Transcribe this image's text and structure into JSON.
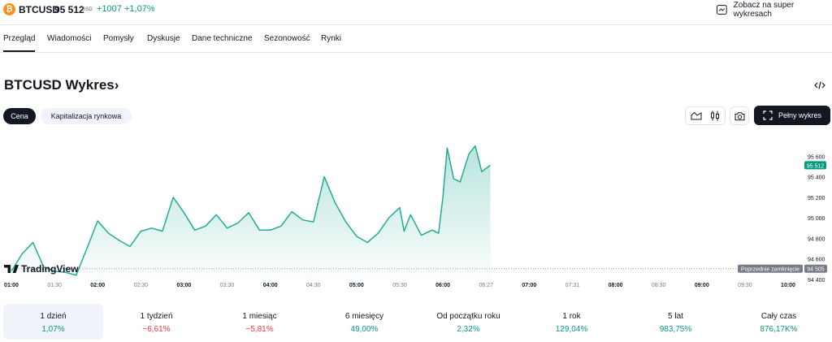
{
  "header": {
    "coin_icon": "bitcoin-icon",
    "coin_glyph": "₿",
    "symbol": "BTCUSD",
    "price": "95 512",
    "price_unit": "USD",
    "change_abs": "+1007",
    "change_pct": "+1,07%",
    "super_charts_label": "Zobacz na super wykresach",
    "super_charts_icon": "chart-square-icon"
  },
  "tabs": [
    {
      "label": "Przegląd",
      "active": true
    },
    {
      "label": "Wiadomości"
    },
    {
      "label": "Pomysły"
    },
    {
      "label": "Dyskusje"
    },
    {
      "label": "Dane techniczne"
    },
    {
      "label": "Sezonowość"
    },
    {
      "label": "Rynki"
    }
  ],
  "chart_header": {
    "title": "BTCUSD Wykres",
    "title_arrow": "›",
    "embed_icon": "code-embed-icon"
  },
  "filters": {
    "price": "Cena",
    "market_cap": "Kapitalizacja rynkowa"
  },
  "toolbar": {
    "area_icon": "area-chart-icon",
    "candle_icon": "candlestick-icon",
    "camera_icon": "camera-icon",
    "fullscreen_icon": "fullscreen-icon",
    "full_chart_label": "Pełny wykres"
  },
  "colors": {
    "accent": "#089981",
    "negative": "#f23645",
    "line": "#22ab94",
    "dark": "#131722",
    "bitcoin": "#f7931a"
  },
  "chart_data": {
    "type": "area",
    "watermark": "TradingView",
    "watermark_icon": "tradingview-logo",
    "x_ticks": [
      "01:00",
      "01:30",
      "02:00",
      "02:30",
      "03:00",
      "03:30",
      "04:00",
      "04:30",
      "05:00",
      "05:30",
      "06:00",
      "06:27",
      "07:00",
      "07:31",
      "08:00",
      "08:30",
      "09:00",
      "09:30",
      "10:00"
    ],
    "x_ticks_bold": [
      "01:00",
      "02:00",
      "03:00",
      "04:00",
      "05:00",
      "06:00",
      "07:00",
      "08:00",
      "09:00",
      "10:00"
    ],
    "y_ticks": [
      95600,
      95400,
      95200,
      95000,
      94800,
      94600,
      94400
    ],
    "y_tick_labels": [
      "95 600",
      "95 400",
      "95 200",
      "95 000",
      "94 800",
      "94 600",
      "94 400"
    ],
    "ylim": [
      94400,
      95800
    ],
    "current_price_label": "95 512",
    "current_price": 95512,
    "previous_close": 94505,
    "previous_close_label": "94 505",
    "previous_close_text": "Poprzednie zamknięcie",
    "x": [
      0,
      0.25,
      0.5,
      0.75,
      1,
      1.25,
      1.5,
      1.75,
      2,
      2.25,
      2.5,
      2.75,
      3,
      3.25,
      3.5,
      3.75,
      4,
      4.25,
      4.5,
      4.75,
      5,
      5.25,
      5.5,
      5.75,
      6,
      6.25,
      6.5,
      6.75,
      7,
      7.25,
      7.5,
      7.75,
      8,
      8.25,
      8.5,
      8.75,
      9,
      9.1,
      9.25,
      9.5,
      9.75,
      9.9,
      10,
      10.1,
      10.25,
      10.4,
      10.6,
      10.75,
      10.9,
      11.1
    ],
    "y": [
      94480,
      94650,
      94760,
      94520,
      94480,
      94470,
      94440,
      94700,
      94970,
      94850,
      94780,
      94720,
      94870,
      94900,
      94870,
      95200,
      95050,
      94880,
      94920,
      95030,
      94900,
      94950,
      95050,
      94880,
      94880,
      94920,
      95060,
      94980,
      94960,
      95400,
      95150,
      94960,
      94820,
      94760,
      94850,
      95000,
      95100,
      94870,
      95030,
      94830,
      94880,
      94850,
      95200,
      95680,
      95380,
      95350,
      95620,
      95700,
      95450,
      95512
    ]
  },
  "periods": [
    {
      "label": "1 dzień",
      "value": "1,07%",
      "sign": "pos",
      "active": true
    },
    {
      "label": "1 tydzień",
      "value": "−6,61%",
      "sign": "neg"
    },
    {
      "label": "1 miesiąc",
      "value": "−5,81%",
      "sign": "neg"
    },
    {
      "label": "6 miesięcy",
      "value": "49,00%",
      "sign": "pos"
    },
    {
      "label": "Od początku roku",
      "value": "2,32%",
      "sign": "pos"
    },
    {
      "label": "1 rok",
      "value": "129,04%",
      "sign": "pos"
    },
    {
      "label": "5 lat",
      "value": "983,75%",
      "sign": "pos"
    },
    {
      "label": "Cały czas",
      "value": "876,17K%",
      "sign": "pos"
    }
  ]
}
